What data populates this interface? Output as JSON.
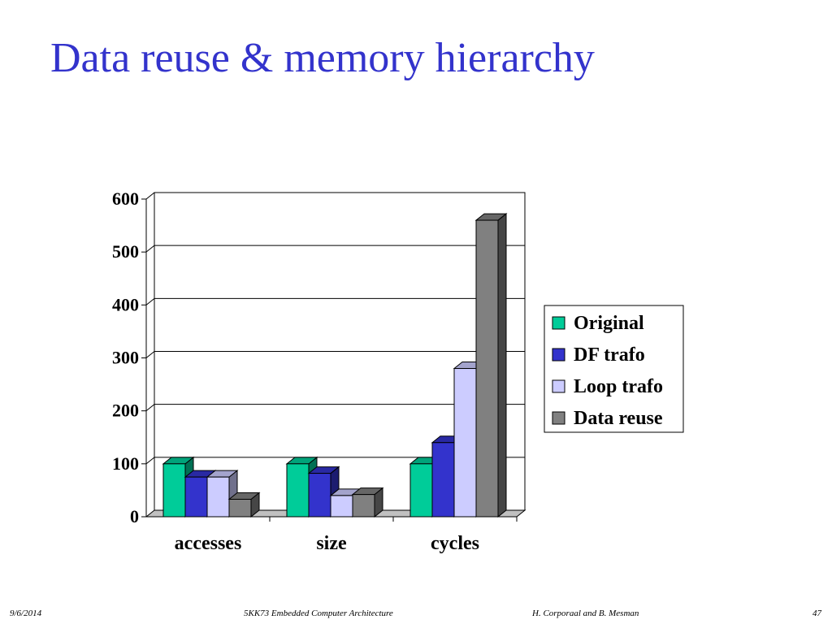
{
  "slide": {
    "title": "Data reuse & memory hierarchy"
  },
  "footer": {
    "date": "9/6/2014",
    "course": "5KK73 Embedded Computer Architecture",
    "authors": "H. Corporaal and B. Mesman",
    "page": "47"
  },
  "chart_data": {
    "type": "bar",
    "style": "3d-clustered-column",
    "categories": [
      "accesses",
      "size",
      "cycles"
    ],
    "series": [
      {
        "name": "Original",
        "values": [
          100,
          100,
          100
        ],
        "color": "#00cc99"
      },
      {
        "name": "DF trafo",
        "values": [
          75,
          82,
          140
        ],
        "color": "#3333cc"
      },
      {
        "name": "Loop trafo",
        "values": [
          75,
          40,
          280
        ],
        "color": "#ccccff"
      },
      {
        "name": "Data reuse",
        "values": [
          33,
          42,
          560
        ],
        "color": "#808080"
      }
    ],
    "yticks": [
      "0",
      "100",
      "200",
      "300",
      "400",
      "500",
      "600"
    ],
    "ylim": [
      0,
      600
    ],
    "grid": true,
    "legend_position": "right",
    "title": "",
    "xlabel": "",
    "ylabel": ""
  }
}
